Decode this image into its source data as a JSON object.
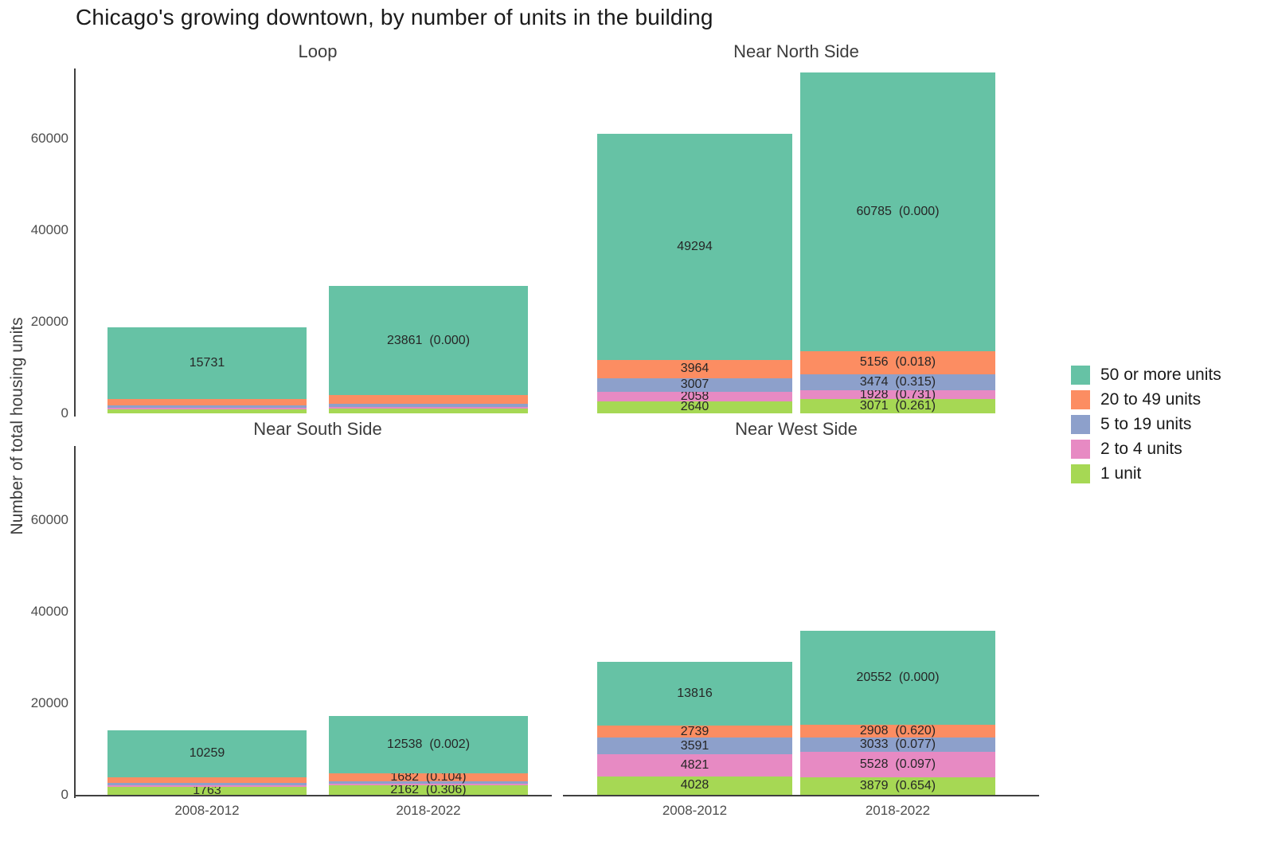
{
  "chart_data": {
    "type": "bar",
    "stacked": true,
    "title": "Chicago's growing downtown, by number of units in the building",
    "ylabel": "Number of total housing units",
    "x_categories": [
      "2008-2012",
      "2018-2022"
    ],
    "y_ticks": [
      0,
      20000,
      40000,
      60000
    ],
    "y_tick_labels": [
      "0",
      "20000",
      "40000",
      "60000"
    ],
    "ylim": [
      0,
      75000
    ],
    "grid": false,
    "legend_position": "right",
    "stack_order_bottom_to_top": [
      "1 unit",
      "2 to 4 units",
      "5 to 19 units",
      "20 to 49 units",
      "50 or more units"
    ],
    "palette": {
      "50 or more units": "#66C2A5",
      "20 to 49 units": "#FC8D62",
      "5 to 19 units": "#8DA0CB",
      "2 to 4 units": "#E78AC3",
      "1 unit": "#A6D854"
    },
    "legend": [
      {
        "label": "50 or more units",
        "color": "#66C2A5"
      },
      {
        "label": "20 to 49 units",
        "color": "#FC8D62"
      },
      {
        "label": "5 to 19 units",
        "color": "#8DA0CB"
      },
      {
        "label": "2 to 4 units",
        "color": "#E78AC3"
      },
      {
        "label": "1 unit",
        "color": "#A6D854"
      }
    ],
    "facets": [
      {
        "name": "Loop",
        "bars": [
          {
            "x": "2008-2012",
            "segments": [
              {
                "series": "1 unit",
                "value": 900,
                "estimated": true,
                "label": null
              },
              {
                "series": "2 to 4 units",
                "value": 350,
                "estimated": true,
                "label": null
              },
              {
                "series": "5 to 19 units",
                "value": 500,
                "estimated": true,
                "label": null
              },
              {
                "series": "20 to 49 units",
                "value": 1300,
                "estimated": true,
                "label": null
              },
              {
                "series": "50 or more units",
                "value": 15731,
                "label": "15731"
              }
            ]
          },
          {
            "x": "2018-2022",
            "segments": [
              {
                "series": "1 unit",
                "value": 1100,
                "estimated": true,
                "label": null
              },
              {
                "series": "2 to 4 units",
                "value": 350,
                "estimated": true,
                "label": null
              },
              {
                "series": "5 to 19 units",
                "value": 600,
                "estimated": true,
                "label": null
              },
              {
                "series": "20 to 49 units",
                "value": 1900,
                "estimated": true,
                "label": null
              },
              {
                "series": "50 or more units",
                "value": 23861,
                "p": "0.000",
                "label": "23861  (0.000)"
              }
            ]
          }
        ]
      },
      {
        "name": "Near North Side",
        "bars": [
          {
            "x": "2008-2012",
            "segments": [
              {
                "series": "1 unit",
                "value": 2640,
                "label": "2640"
              },
              {
                "series": "2 to 4 units",
                "value": 2058,
                "label": "2058"
              },
              {
                "series": "5 to 19 units",
                "value": 3007,
                "label": "3007"
              },
              {
                "series": "20 to 49 units",
                "value": 3964,
                "label": "3964"
              },
              {
                "series": "50 or more units",
                "value": 49294,
                "label": "49294"
              }
            ]
          },
          {
            "x": "2018-2022",
            "segments": [
              {
                "series": "1 unit",
                "value": 3071,
                "p": "0.261",
                "label": "3071  (0.261)"
              },
              {
                "series": "2 to 4 units",
                "value": 1928,
                "p": "0.731",
                "label": "1928  (0.731)"
              },
              {
                "series": "5 to 19 units",
                "value": 3474,
                "p": "0.315",
                "label": "3474  (0.315)"
              },
              {
                "series": "20 to 49 units",
                "value": 5156,
                "p": "0.018",
                "label": "5156  (0.018)"
              },
              {
                "series": "50 or more units",
                "value": 60785,
                "p": "0.000",
                "label": "60785  (0.000)"
              }
            ]
          }
        ]
      },
      {
        "name": "Near South Side",
        "bars": [
          {
            "x": "2008-2012",
            "segments": [
              {
                "series": "1 unit",
                "value": 1763,
                "label": "1763"
              },
              {
                "series": "2 to 4 units",
                "value": 300,
                "estimated": true,
                "label": null
              },
              {
                "series": "5 to 19 units",
                "value": 500,
                "estimated": true,
                "label": null
              },
              {
                "series": "20 to 49 units",
                "value": 1300,
                "estimated": true,
                "label": null
              },
              {
                "series": "50 or more units",
                "value": 10259,
                "label": "10259"
              }
            ]
          },
          {
            "x": "2018-2022",
            "segments": [
              {
                "series": "1 unit",
                "value": 2162,
                "p": "0.306",
                "label": "2162  (0.306)"
              },
              {
                "series": "2 to 4 units",
                "value": 350,
                "estimated": true,
                "label": null
              },
              {
                "series": "5 to 19 units",
                "value": 500,
                "estimated": true,
                "label": null
              },
              {
                "series": "20 to 49 units",
                "value": 1682,
                "p": "0.104",
                "label": "1682  (0.104)"
              },
              {
                "series": "50 or more units",
                "value": 12538,
                "p": "0.002",
                "label": "12538  (0.002)"
              }
            ]
          }
        ]
      },
      {
        "name": "Near West Side",
        "bars": [
          {
            "x": "2008-2012",
            "segments": [
              {
                "series": "1 unit",
                "value": 4028,
                "label": "4028"
              },
              {
                "series": "2 to 4 units",
                "value": 4821,
                "label": "4821"
              },
              {
                "series": "5 to 19 units",
                "value": 3591,
                "label": "3591"
              },
              {
                "series": "20 to 49 units",
                "value": 2739,
                "label": "2739"
              },
              {
                "series": "50 or more units",
                "value": 13816,
                "label": "13816"
              }
            ]
          },
          {
            "x": "2018-2022",
            "segments": [
              {
                "series": "1 unit",
                "value": 3879,
                "p": "0.654",
                "label": "3879  (0.654)"
              },
              {
                "series": "2 to 4 units",
                "value": 5528,
                "p": "0.097",
                "label": "5528  (0.097)"
              },
              {
                "series": "5 to 19 units",
                "value": 3033,
                "p": "0.077",
                "label": "3033  (0.077)"
              },
              {
                "series": "20 to 49 units",
                "value": 2908,
                "p": "0.620",
                "label": "2908  (0.620)"
              },
              {
                "series": "50 or more units",
                "value": 20552,
                "p": "0.000",
                "label": "20552  (0.000)"
              }
            ]
          }
        ]
      }
    ]
  }
}
